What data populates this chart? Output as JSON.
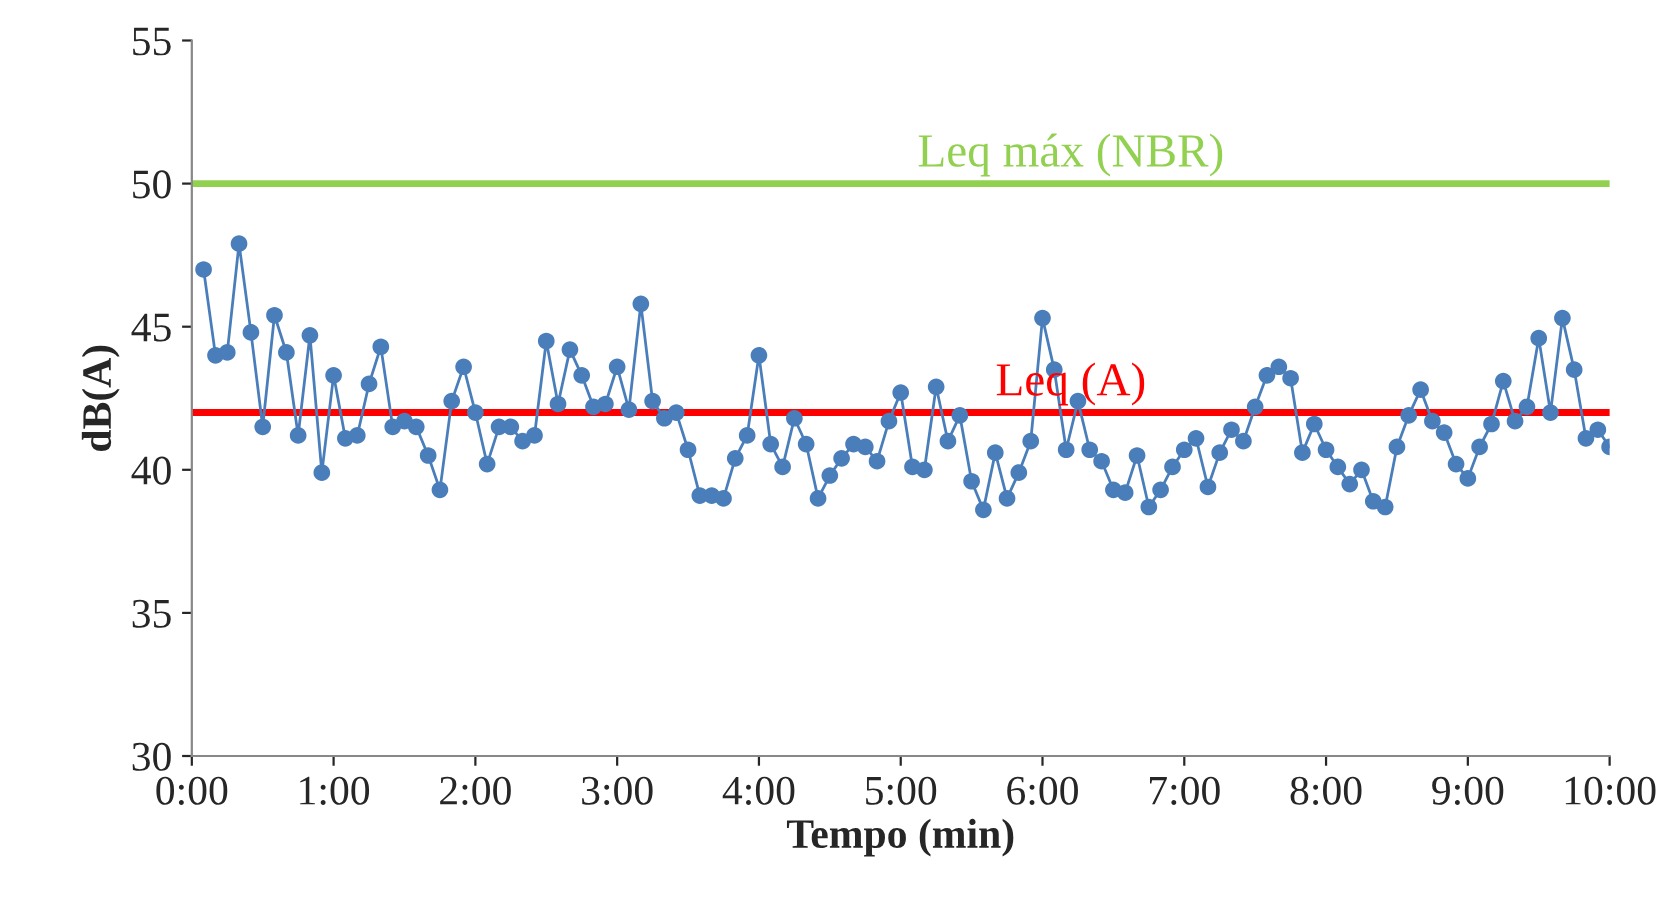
{
  "chart_data": {
    "type": "line",
    "xlabel": "Tempo (min)",
    "ylabel": "dB(A)",
    "x": [
      0.083,
      0.167,
      0.25,
      0.333,
      0.417,
      0.5,
      0.583,
      0.667,
      0.75,
      0.833,
      0.917,
      1.0,
      1.083,
      1.167,
      1.25,
      1.333,
      1.417,
      1.5,
      1.583,
      1.667,
      1.75,
      1.833,
      1.917,
      2.0,
      2.083,
      2.167,
      2.25,
      2.333,
      2.417,
      2.5,
      2.583,
      2.667,
      2.75,
      2.833,
      2.917,
      3.0,
      3.083,
      3.167,
      3.25,
      3.333,
      3.417,
      3.5,
      3.583,
      3.667,
      3.75,
      3.833,
      3.917,
      4.0,
      4.083,
      4.167,
      4.25,
      4.333,
      4.417,
      4.5,
      4.583,
      4.667,
      4.75,
      4.833,
      4.917,
      5.0,
      5.083,
      5.167,
      5.25,
      5.333,
      5.417,
      5.5,
      5.583,
      5.667,
      5.75,
      5.833,
      5.917,
      6.0,
      6.083,
      6.167,
      6.25,
      6.333,
      6.417,
      6.5,
      6.583,
      6.667,
      6.75,
      6.833,
      6.917,
      7.0,
      7.083,
      7.167,
      7.25,
      7.333,
      7.417,
      7.5,
      7.583,
      7.667,
      7.75,
      7.833,
      7.917,
      8.0,
      8.083,
      8.167,
      8.25,
      8.333,
      8.417,
      8.5,
      8.583,
      8.667,
      8.75,
      8.833,
      8.917,
      9.0,
      9.083,
      9.167,
      9.25,
      9.333,
      9.417,
      9.5,
      9.583,
      9.667,
      9.75,
      9.833,
      9.917,
      10.0
    ],
    "series": [
      {
        "color": "#4a7ebb",
        "marker": "circle",
        "line_style": "solid",
        "values": [
          47.0,
          44.0,
          44.1,
          47.9,
          44.8,
          41.5,
          45.4,
          44.1,
          41.2,
          44.7,
          39.9,
          43.3,
          41.1,
          41.2,
          43.0,
          44.3,
          41.5,
          41.7,
          41.5,
          40.5,
          39.3,
          42.4,
          43.6,
          42.0,
          40.2,
          41.5,
          41.5,
          41.0,
          41.2,
          44.5,
          42.3,
          44.2,
          43.3,
          42.2,
          42.3,
          43.6,
          42.1,
          45.8,
          42.4,
          41.8,
          42.0,
          40.7,
          39.1,
          39.1,
          39.0,
          40.4,
          41.2,
          44.0,
          40.9,
          40.1,
          41.8,
          40.9,
          39.0,
          39.8,
          40.4,
          40.9,
          40.8,
          40.3,
          41.7,
          42.7,
          40.1,
          40.0,
          42.9,
          41.0,
          41.9,
          39.6,
          38.6,
          40.6,
          39.0,
          39.9,
          41.0,
          45.3,
          43.5,
          40.7,
          42.4,
          40.7,
          40.3,
          39.3,
          39.2,
          40.5,
          38.7,
          39.3,
          40.1,
          40.7,
          41.1,
          39.4,
          40.6,
          41.4,
          41.0,
          42.2,
          43.3,
          43.6,
          43.2,
          40.6,
          41.6,
          40.7,
          40.1,
          39.5,
          40.0,
          38.9,
          38.7,
          40.8,
          41.9,
          42.8,
          41.7,
          41.3,
          40.2,
          39.7,
          40.8,
          41.6,
          43.1,
          41.7,
          42.2,
          44.6,
          42.0,
          45.3,
          43.5,
          41.1,
          41.4,
          40.8
        ]
      }
    ],
    "ref_lines": [
      {
        "axis": "y",
        "value": 50,
        "label": "Leq máx (NBR)",
        "color": "#92d050"
      },
      {
        "axis": "y",
        "value": 42,
        "label": "Leq (A)",
        "color": "#ff0000"
      }
    ],
    "xlim": [
      0,
      10
    ],
    "xticks": [
      {
        "value": 0,
        "label": "0:00"
      },
      {
        "value": 1,
        "label": "1:00"
      },
      {
        "value": 2,
        "label": "2:00"
      },
      {
        "value": 3,
        "label": "3:00"
      },
      {
        "value": 4,
        "label": "4:00"
      },
      {
        "value": 5,
        "label": "5:00"
      },
      {
        "value": 6,
        "label": "6:00"
      },
      {
        "value": 7,
        "label": "7:00"
      },
      {
        "value": 8,
        "label": "8:00"
      },
      {
        "value": 9,
        "label": "9:00"
      },
      {
        "value": 10,
        "label": "10:00"
      }
    ],
    "ylim": [
      30,
      55
    ],
    "yticks": [
      30,
      35,
      40,
      45,
      50,
      55
    ],
    "grid": false,
    "legend": false
  }
}
